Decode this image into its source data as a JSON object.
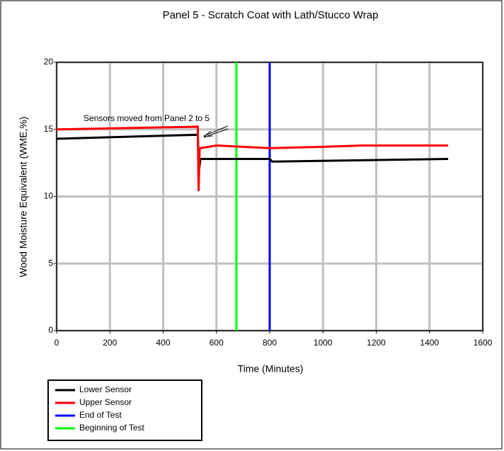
{
  "chart_data": {
    "type": "line",
    "title": "Panel 5 - Scratch Coat with Lath/Stucco Wrap",
    "x_label": "Time (Minutes)",
    "y_label": "Wood Moisture Equivalent (WME,%)",
    "annotation": "Sensors moved from Panel 2 to 5",
    "xlim": [
      0,
      1600
    ],
    "xticks": [
      0,
      200,
      400,
      600,
      800,
      1000,
      1200,
      1400,
      1600
    ],
    "ylim": [
      0,
      20
    ],
    "yticks": [
      0,
      5,
      10,
      15,
      20
    ],
    "grid": true,
    "legend": "bottom-left",
    "series": [
      {
        "name": "Lower Sensor",
        "color": "#000000",
        "x": [
          0,
          530,
          535,
          540,
          800,
          810,
          1470
        ],
        "values": [
          14.3,
          14.6,
          12.0,
          12.8,
          12.8,
          12.6,
          12.8
        ]
      },
      {
        "name": "Upper Sensor",
        "color": "#ff0000",
        "x": [
          0,
          530,
          533,
          537,
          540,
          600,
          700,
          800,
          1000,
          1150,
          1200,
          1470
        ],
        "values": [
          15.0,
          15.2,
          10.4,
          13.5,
          13.6,
          13.8,
          13.7,
          13.6,
          13.7,
          13.8,
          13.8,
          13.8
        ]
      },
      {
        "name": "End of Test",
        "color": "#0000ff",
        "x": [
          800,
          800
        ],
        "values": [
          0,
          20
        ]
      },
      {
        "name": "Beginning of Test",
        "color": "#00ff00",
        "x": [
          675,
          675
        ],
        "values": [
          0,
          20
        ]
      }
    ]
  }
}
